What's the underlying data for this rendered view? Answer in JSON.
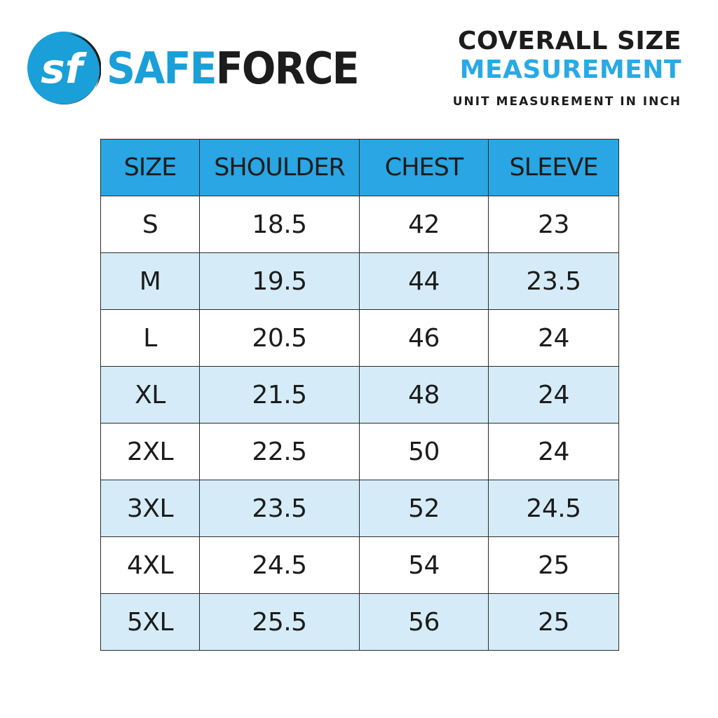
{
  "brand": {
    "name_part1": "SAFE",
    "name_part2": "FORCE",
    "mark_text": "sf",
    "colors": {
      "primary": "#1a9fd9",
      "dark": "#1c1c1c"
    }
  },
  "heading": {
    "line1": "COVERALL SIZE",
    "line2": "MEASUREMENT",
    "line3": "UNIT MEASUREMENT IN INCH"
  },
  "table": {
    "header_color": "#29a6e3",
    "stripe_color": "#d5ecf8",
    "columns": [
      "SIZE",
      "SHOULDER",
      "CHEST",
      "SLEEVE"
    ],
    "rows": [
      [
        "S",
        "18.5",
        "42",
        "23"
      ],
      [
        "M",
        "19.5",
        "44",
        "23.5"
      ],
      [
        "L",
        "20.5",
        "46",
        "24"
      ],
      [
        "XL",
        "21.5",
        "48",
        "24"
      ],
      [
        "2XL",
        "22.5",
        "50",
        "24"
      ],
      [
        "3XL",
        "23.5",
        "52",
        "24.5"
      ],
      [
        "4XL",
        "24.5",
        "54",
        "25"
      ],
      [
        "5XL",
        "25.5",
        "56",
        "25"
      ]
    ]
  }
}
